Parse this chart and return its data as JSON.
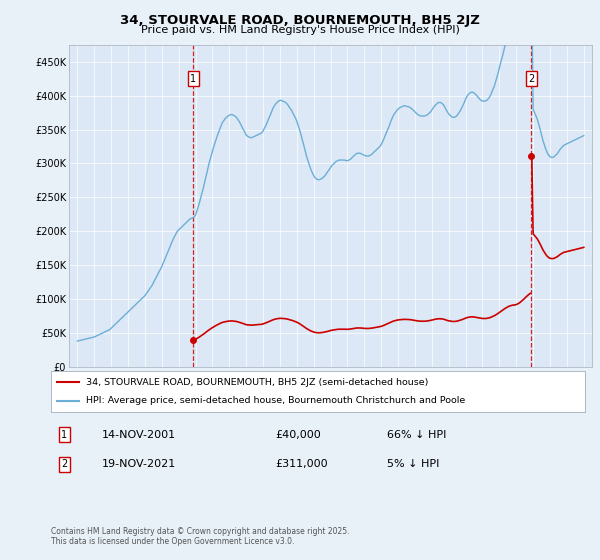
{
  "title": "34, STOURVALE ROAD, BOURNEMOUTH, BH5 2JZ",
  "subtitle": "Price paid vs. HM Land Registry's House Price Index (HPI)",
  "legend_line1": "34, STOURVALE ROAD, BOURNEMOUTH, BH5 2JZ (semi-detached house)",
  "legend_line2": "HPI: Average price, semi-detached house, Bournemouth Christchurch and Poole",
  "footnote": "Contains HM Land Registry data © Crown copyright and database right 2025.\nThis data is licensed under the Open Government Licence v3.0.",
  "annotation1_date": "14-NOV-2001",
  "annotation1_price": "£40,000",
  "annotation1_hpi": "66% ↓ HPI",
  "annotation2_date": "19-NOV-2021",
  "annotation2_price": "£311,000",
  "annotation2_hpi": "5% ↓ HPI",
  "sale1_x": 2001.87,
  "sale1_y": 40000,
  "sale2_x": 2021.88,
  "sale2_y": 311000,
  "ylim": [
    0,
    475000
  ],
  "xlim": [
    1994.5,
    2025.5
  ],
  "yticks": [
    0,
    50000,
    100000,
    150000,
    200000,
    250000,
    300000,
    350000,
    400000,
    450000
  ],
  "ytick_labels": [
    "£0",
    "£50K",
    "£100K",
    "£150K",
    "£200K",
    "£250K",
    "£300K",
    "£350K",
    "£400K",
    "£450K"
  ],
  "xticks": [
    1995,
    1996,
    1997,
    1998,
    1999,
    2000,
    2001,
    2002,
    2003,
    2004,
    2005,
    2006,
    2007,
    2008,
    2009,
    2010,
    2011,
    2012,
    2013,
    2014,
    2015,
    2016,
    2017,
    2018,
    2019,
    2020,
    2021,
    2022,
    2023,
    2024,
    2025
  ],
  "hpi_color": "#6baed6",
  "price_color": "#cc0000",
  "vline_color": "#cc0000",
  "bg_color": "#e8f0f8",
  "plot_bg": "#dce8f5",
  "hpi_x": [
    1995.0,
    1995.08,
    1995.17,
    1995.25,
    1995.33,
    1995.42,
    1995.5,
    1995.58,
    1995.67,
    1995.75,
    1995.83,
    1995.92,
    1996.0,
    1996.08,
    1996.17,
    1996.25,
    1996.33,
    1996.42,
    1996.5,
    1996.58,
    1996.67,
    1996.75,
    1996.83,
    1996.92,
    1997.0,
    1997.08,
    1997.17,
    1997.25,
    1997.33,
    1997.42,
    1997.5,
    1997.58,
    1997.67,
    1997.75,
    1997.83,
    1997.92,
    1998.0,
    1998.08,
    1998.17,
    1998.25,
    1998.33,
    1998.42,
    1998.5,
    1998.58,
    1998.67,
    1998.75,
    1998.83,
    1998.92,
    1999.0,
    1999.08,
    1999.17,
    1999.25,
    1999.33,
    1999.42,
    1999.5,
    1999.58,
    1999.67,
    1999.75,
    1999.83,
    1999.92,
    2000.0,
    2000.08,
    2000.17,
    2000.25,
    2000.33,
    2000.42,
    2000.5,
    2000.58,
    2000.67,
    2000.75,
    2000.83,
    2000.92,
    2001.0,
    2001.08,
    2001.17,
    2001.25,
    2001.33,
    2001.42,
    2001.5,
    2001.58,
    2001.67,
    2001.75,
    2001.83,
    2001.92,
    2002.0,
    2002.08,
    2002.17,
    2002.25,
    2002.33,
    2002.42,
    2002.5,
    2002.58,
    2002.67,
    2002.75,
    2002.83,
    2002.92,
    2003.0,
    2003.08,
    2003.17,
    2003.25,
    2003.33,
    2003.42,
    2003.5,
    2003.58,
    2003.67,
    2003.75,
    2003.83,
    2003.92,
    2004.0,
    2004.08,
    2004.17,
    2004.25,
    2004.33,
    2004.42,
    2004.5,
    2004.58,
    2004.67,
    2004.75,
    2004.83,
    2004.92,
    2005.0,
    2005.08,
    2005.17,
    2005.25,
    2005.33,
    2005.42,
    2005.5,
    2005.58,
    2005.67,
    2005.75,
    2005.83,
    2005.92,
    2006.0,
    2006.08,
    2006.17,
    2006.25,
    2006.33,
    2006.42,
    2006.5,
    2006.58,
    2006.67,
    2006.75,
    2006.83,
    2006.92,
    2007.0,
    2007.08,
    2007.17,
    2007.25,
    2007.33,
    2007.42,
    2007.5,
    2007.58,
    2007.67,
    2007.75,
    2007.83,
    2007.92,
    2008.0,
    2008.08,
    2008.17,
    2008.25,
    2008.33,
    2008.42,
    2008.5,
    2008.58,
    2008.67,
    2008.75,
    2008.83,
    2008.92,
    2009.0,
    2009.08,
    2009.17,
    2009.25,
    2009.33,
    2009.42,
    2009.5,
    2009.58,
    2009.67,
    2009.75,
    2009.83,
    2009.92,
    2010.0,
    2010.08,
    2010.17,
    2010.25,
    2010.33,
    2010.42,
    2010.5,
    2010.58,
    2010.67,
    2010.75,
    2010.83,
    2010.92,
    2011.0,
    2011.08,
    2011.17,
    2011.25,
    2011.33,
    2011.42,
    2011.5,
    2011.58,
    2011.67,
    2011.75,
    2011.83,
    2011.92,
    2012.0,
    2012.08,
    2012.17,
    2012.25,
    2012.33,
    2012.42,
    2012.5,
    2012.58,
    2012.67,
    2012.75,
    2012.83,
    2012.92,
    2013.0,
    2013.08,
    2013.17,
    2013.25,
    2013.33,
    2013.42,
    2013.5,
    2013.58,
    2013.67,
    2013.75,
    2013.83,
    2013.92,
    2014.0,
    2014.08,
    2014.17,
    2014.25,
    2014.33,
    2014.42,
    2014.5,
    2014.58,
    2014.67,
    2014.75,
    2014.83,
    2014.92,
    2015.0,
    2015.08,
    2015.17,
    2015.25,
    2015.33,
    2015.42,
    2015.5,
    2015.58,
    2015.67,
    2015.75,
    2015.83,
    2015.92,
    2016.0,
    2016.08,
    2016.17,
    2016.25,
    2016.33,
    2016.42,
    2016.5,
    2016.58,
    2016.67,
    2016.75,
    2016.83,
    2016.92,
    2017.0,
    2017.08,
    2017.17,
    2017.25,
    2017.33,
    2017.42,
    2017.5,
    2017.58,
    2017.67,
    2017.75,
    2017.83,
    2017.92,
    2018.0,
    2018.08,
    2018.17,
    2018.25,
    2018.33,
    2018.42,
    2018.5,
    2018.58,
    2018.67,
    2018.75,
    2018.83,
    2018.92,
    2019.0,
    2019.08,
    2019.17,
    2019.25,
    2019.33,
    2019.42,
    2019.5,
    2019.58,
    2019.67,
    2019.75,
    2019.83,
    2019.92,
    2020.0,
    2020.08,
    2020.17,
    2020.25,
    2020.33,
    2020.42,
    2020.5,
    2020.58,
    2020.67,
    2020.75,
    2020.83,
    2020.92,
    2021.0,
    2021.08,
    2021.17,
    2021.25,
    2021.33,
    2021.42,
    2021.5,
    2021.58,
    2021.67,
    2021.75,
    2021.83,
    2021.92,
    2022.0,
    2022.08,
    2022.17,
    2022.25,
    2022.33,
    2022.42,
    2022.5,
    2022.58,
    2022.67,
    2022.75,
    2022.83,
    2022.92,
    2023.0,
    2023.08,
    2023.17,
    2023.25,
    2023.33,
    2023.42,
    2023.5,
    2023.58,
    2023.67,
    2023.75,
    2023.83,
    2023.92,
    2024.0,
    2024.08,
    2024.17,
    2024.25,
    2024.33,
    2024.42,
    2024.5,
    2024.58,
    2024.67,
    2024.75,
    2024.83,
    2024.92,
    2025.0
  ],
  "hpi_y": [
    38000,
    38500,
    39000,
    39500,
    40000,
    40500,
    41000,
    41500,
    42000,
    42500,
    43000,
    43500,
    44000,
    45000,
    46000,
    47000,
    48000,
    49000,
    50000,
    51000,
    52000,
    53000,
    54000,
    55000,
    57000,
    59000,
    61000,
    63000,
    65000,
    67000,
    69000,
    71000,
    73000,
    75000,
    77000,
    79000,
    81000,
    83000,
    85000,
    87000,
    89000,
    91000,
    93000,
    95000,
    97000,
    99000,
    101000,
    103000,
    105000,
    108000,
    111000,
    114000,
    117000,
    120000,
    124000,
    128000,
    132000,
    136000,
    140000,
    144000,
    148000,
    153000,
    158000,
    163000,
    168000,
    173000,
    178000,
    183000,
    188000,
    192000,
    196000,
    200000,
    202000,
    204000,
    206000,
    208000,
    210000,
    212000,
    214000,
    216000,
    218000,
    219000,
    220000,
    221000,
    224000,
    230000,
    237000,
    244000,
    252000,
    260000,
    268000,
    277000,
    286000,
    295000,
    303000,
    311000,
    318000,
    325000,
    332000,
    338000,
    344000,
    350000,
    355000,
    360000,
    363000,
    366000,
    368000,
    370000,
    371000,
    372000,
    372000,
    371000,
    370000,
    368000,
    365000,
    362000,
    358000,
    354000,
    350000,
    346000,
    342000,
    340000,
    339000,
    338000,
    338000,
    339000,
    340000,
    341000,
    342000,
    343000,
    344000,
    345000,
    348000,
    352000,
    356000,
    361000,
    366000,
    371000,
    376000,
    381000,
    385000,
    388000,
    390000,
    392000,
    393000,
    393000,
    392000,
    391000,
    390000,
    388000,
    385000,
    382000,
    379000,
    375000,
    371000,
    367000,
    362000,
    356000,
    349000,
    342000,
    334000,
    326000,
    318000,
    310000,
    303000,
    297000,
    291000,
    286000,
    282000,
    279000,
    277000,
    276000,
    276000,
    277000,
    278000,
    280000,
    282000,
    285000,
    288000,
    291000,
    294000,
    297000,
    299000,
    301000,
    303000,
    304000,
    305000,
    305000,
    305000,
    305000,
    305000,
    304000,
    304000,
    305000,
    306000,
    308000,
    310000,
    312000,
    314000,
    315000,
    315000,
    315000,
    314000,
    313000,
    312000,
    311000,
    311000,
    311000,
    312000,
    313000,
    315000,
    317000,
    319000,
    321000,
    323000,
    325000,
    328000,
    332000,
    337000,
    342000,
    347000,
    352000,
    357000,
    363000,
    368000,
    372000,
    375000,
    378000,
    380000,
    382000,
    383000,
    384000,
    385000,
    385000,
    384000,
    384000,
    383000,
    382000,
    380000,
    378000,
    376000,
    374000,
    372000,
    371000,
    370000,
    370000,
    370000,
    370000,
    371000,
    372000,
    374000,
    376000,
    379000,
    382000,
    385000,
    387000,
    389000,
    390000,
    390000,
    389000,
    387000,
    384000,
    380000,
    376000,
    373000,
    371000,
    369000,
    368000,
    368000,
    369000,
    371000,
    374000,
    377000,
    381000,
    385000,
    390000,
    395000,
    399000,
    402000,
    404000,
    405000,
    405000,
    404000,
    402000,
    400000,
    397000,
    395000,
    393000,
    392000,
    392000,
    392000,
    393000,
    395000,
    398000,
    402000,
    407000,
    412000,
    418000,
    425000,
    433000,
    441000,
    449000,
    457000,
    465000,
    473000,
    480000,
    487000,
    492000,
    496000,
    499000,
    501000,
    502000,
    505000,
    510000,
    517000,
    525000,
    535000,
    545000,
    556000,
    567000,
    578000,
    588000,
    596000,
    602000,
    380000,
    375000,
    370000,
    365000,
    358000,
    350000,
    342000,
    334000,
    327000,
    321000,
    316000,
    312000,
    310000,
    309000,
    309000,
    310000,
    312000,
    314000,
    317000,
    320000,
    323000,
    325000,
    327000,
    328000,
    329000,
    330000,
    331000,
    332000,
    333000,
    334000,
    335000,
    336000,
    337000,
    338000,
    339000,
    340000,
    341000
  ]
}
